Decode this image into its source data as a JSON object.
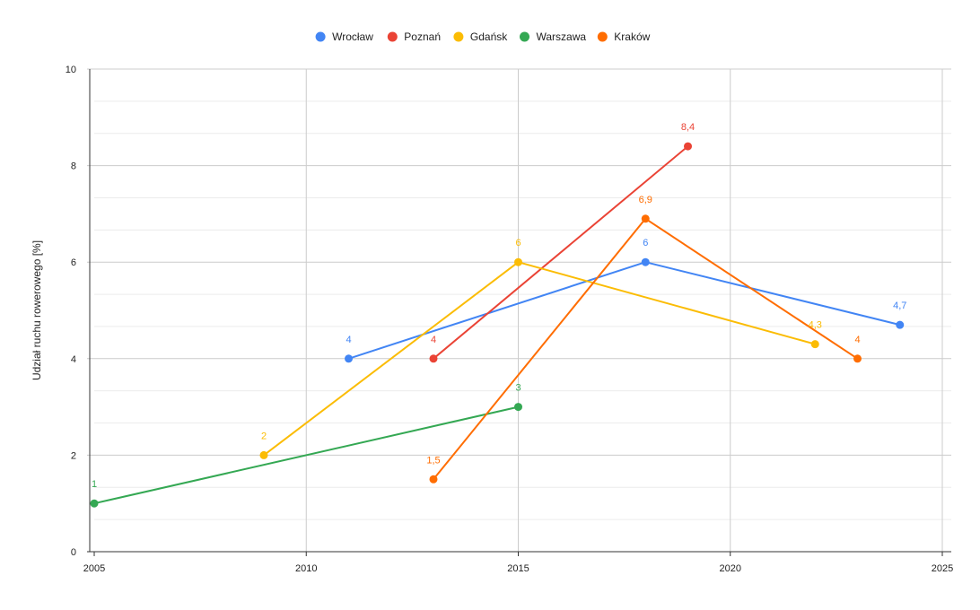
{
  "chart_data": {
    "type": "line",
    "ylabel": "Udział ruchu rowerowego [%]",
    "xlim": [
      2005,
      2025
    ],
    "ylim": [
      0,
      10
    ],
    "x_ticks": [
      2005,
      2010,
      2015,
      2020,
      2025
    ],
    "y_ticks": [
      0,
      2,
      4,
      6,
      8,
      10
    ],
    "grid": true,
    "legend_position": "top",
    "series": [
      {
        "name": "Wrocław",
        "color": "#4285F4",
        "points": [
          {
            "x": 2011,
            "y": 4,
            "label": "4"
          },
          {
            "x": 2018,
            "y": 6,
            "label": "6"
          },
          {
            "x": 2024,
            "y": 4.7,
            "label": "4,7"
          }
        ]
      },
      {
        "name": "Poznań",
        "color": "#EA4335",
        "points": [
          {
            "x": 2013,
            "y": 4,
            "label": "4"
          },
          {
            "x": 2019,
            "y": 8.4,
            "label": "8,4"
          }
        ]
      },
      {
        "name": "Gdańsk",
        "color": "#FBBC04",
        "points": [
          {
            "x": 2009,
            "y": 2,
            "label": "2"
          },
          {
            "x": 2015,
            "y": 6,
            "label": "6"
          },
          {
            "x": 2022,
            "y": 4.3,
            "label": "4,3"
          }
        ]
      },
      {
        "name": "Warszawa",
        "color": "#34A853",
        "points": [
          {
            "x": 2005,
            "y": 1,
            "label": "1"
          },
          {
            "x": 2015,
            "y": 3,
            "label": "3"
          }
        ]
      },
      {
        "name": "Kraków",
        "color": "#FF6D01",
        "points": [
          {
            "x": 2013,
            "y": 1.5,
            "label": "1,5"
          },
          {
            "x": 2018,
            "y": 6.9,
            "label": "6,9"
          },
          {
            "x": 2023,
            "y": 4,
            "label": "4"
          }
        ]
      }
    ]
  }
}
